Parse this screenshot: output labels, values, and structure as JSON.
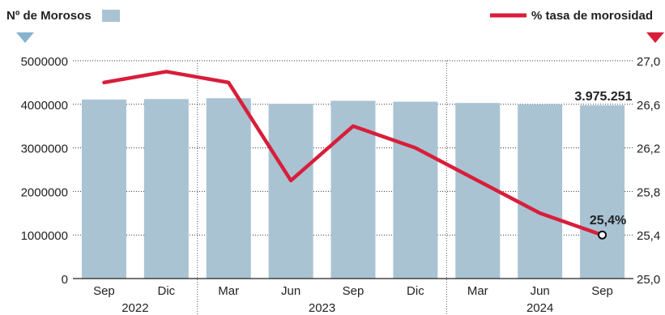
{
  "legend": {
    "bars_label": "Nº de Morosos",
    "line_label": "% tasa de morosidad"
  },
  "colors": {
    "bars": "#a9c3d3",
    "line": "#d81e3a",
    "left_marker": "#86b3cf",
    "right_marker": "#d81e3a",
    "grid": "#333333",
    "text": "#222222"
  },
  "chart_data": {
    "type": "bar",
    "categories": [
      "Sep",
      "Dic",
      "Mar",
      "Jun",
      "Sep",
      "Dic",
      "Mar",
      "Jun",
      "Sep"
    ],
    "year_groups": [
      {
        "label": "2022",
        "categories": [
          "Sep",
          "Dic"
        ]
      },
      {
        "label": "2023",
        "categories": [
          "Mar",
          "Jun",
          "Sep",
          "Dic"
        ]
      },
      {
        "label": "2024",
        "categories": [
          "Mar",
          "Jun",
          "Sep"
        ]
      }
    ],
    "series": [
      {
        "name": "Nº de Morosos",
        "type": "bar",
        "axis": "left",
        "values": [
          4110000,
          4120000,
          4140000,
          4010000,
          4080000,
          4060000,
          4030000,
          4000000,
          3975251
        ]
      },
      {
        "name": "% tasa de morosidad",
        "type": "line",
        "axis": "right",
        "values": [
          26.8,
          26.9,
          26.8,
          25.9,
          26.4,
          26.2,
          25.9,
          25.6,
          25.4
        ]
      }
    ],
    "left_axis": {
      "ylim": [
        0,
        5000000
      ],
      "ticks": [
        "0",
        "1000000",
        "2000000",
        "3000000",
        "4000000",
        "5000000"
      ]
    },
    "right_axis": {
      "ylim": [
        25.0,
        27.0
      ],
      "ticks": [
        "25,0",
        "25,4",
        "25,8",
        "26,2",
        "26,6",
        "27,0"
      ]
    },
    "annotations": {
      "last_bar_value": "3.975.251",
      "last_line_value": "25,4%"
    },
    "grid": true
  }
}
